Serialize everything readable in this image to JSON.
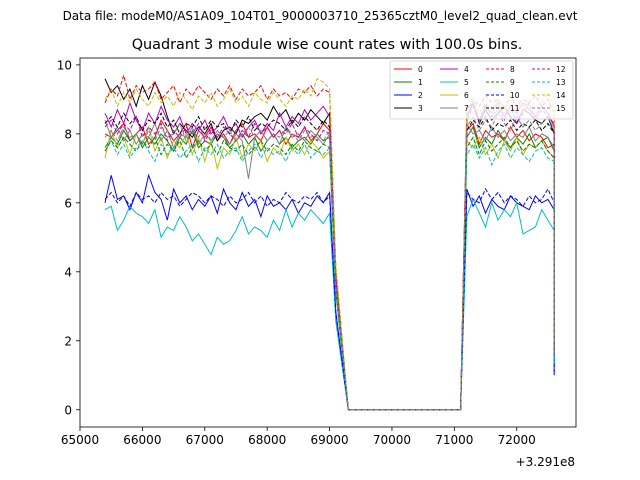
{
  "chart_data": {
    "type": "line",
    "suptitle": "Data file: modeM0/AS1A09_104T01_9000003710_25365cztM0_level2_quad_clean.evt",
    "title": "Quadrant 3 module wise count rates with 100.0s bins.",
    "xlabel": "",
    "ylabel": "",
    "x_offset_label": "+3.291e8",
    "xlim": [
      65000,
      72950
    ],
    "ylim": [
      -0.5,
      10.2
    ],
    "x_ticks": [
      65000,
      66000,
      67000,
      68000,
      69000,
      70000,
      71000,
      72000
    ],
    "y_ticks": [
      0,
      2,
      4,
      6,
      8,
      10
    ],
    "x_tick_labels": [
      "65000",
      "66000",
      "67000",
      "68000",
      "69000",
      "70000",
      "71000",
      "72000"
    ],
    "y_tick_labels": [
      "0",
      "2",
      "4",
      "6",
      "8",
      "10"
    ],
    "legend": {
      "placement": "top-right",
      "columns": 4
    },
    "x_segments": [
      {
        "start": 65400,
        "end": 69000,
        "step": 100
      },
      {
        "start": 69100,
        "end": 69300,
        "step": 100
      },
      {
        "start": 69300,
        "end": 71100,
        "step": 100
      },
      {
        "start": 71100,
        "end": 71200,
        "step": 100
      },
      {
        "start": 71200,
        "end": 72600,
        "step": 100
      }
    ],
    "series": [
      {
        "name": "0",
        "color": "#ff0000",
        "dash": false,
        "seg1": [
          8.0,
          7.9,
          8.1,
          8.3,
          7.8,
          8.0,
          8.2,
          7.7,
          7.9,
          8.4,
          8.1,
          7.8,
          8.0,
          8.3,
          7.6,
          8.1,
          7.9,
          8.2,
          7.8,
          8.0,
          7.7,
          8.1,
          8.3,
          7.9,
          8.0,
          7.8,
          8.2,
          7.9,
          8.1,
          7.7,
          8.0,
          7.9,
          8.2,
          7.8,
          8.0,
          8.3,
          8.1
        ],
        "seg2": [
          8.1,
          8.3,
          7.7,
          8.1,
          7.9,
          8.0,
          7.8,
          8.2,
          7.9,
          8.1,
          7.8,
          8.0,
          7.9,
          7.6,
          7.7
        ]
      },
      {
        "name": "1",
        "color": "#008000",
        "dash": false,
        "seg1": [
          7.6,
          7.9,
          7.7,
          8.1,
          7.8,
          8.0,
          7.6,
          7.9,
          7.7,
          8.0,
          7.8,
          7.5,
          7.9,
          7.7,
          8.1,
          7.6,
          7.8,
          7.7,
          8.0,
          7.9,
          7.6,
          7.8,
          8.0,
          7.7,
          7.9,
          7.5,
          7.8,
          8.0,
          7.7,
          7.9,
          7.6,
          7.8,
          7.9,
          7.7,
          8.0,
          7.8,
          7.9
        ],
        "seg2": [
          7.9,
          8.2,
          7.6,
          7.9,
          7.7,
          8.1,
          7.8,
          7.6,
          7.9,
          7.7,
          8.0,
          7.6,
          7.8,
          7.9,
          7.5
        ]
      },
      {
        "name": "2",
        "color": "#0000ff",
        "dash": false,
        "seg1": [
          6.0,
          6.8,
          6.1,
          6.2,
          5.8,
          6.3,
          6.0,
          6.8,
          6.3,
          6.1,
          5.5,
          6.4,
          6.0,
          6.2,
          5.8,
          6.1,
          5.9,
          6.2,
          5.7,
          6.4,
          6.0,
          5.8,
          6.3,
          5.9,
          6.1,
          5.6,
          6.2,
          5.9,
          6.0,
          5.8,
          6.1,
          5.7,
          6.0,
          5.9,
          6.2,
          6.0,
          6.3
        ],
        "seg2": [
          6.4,
          5.9,
          6.2,
          5.7,
          6.1,
          5.9,
          5.8,
          6.2,
          6.0,
          5.9,
          5.8,
          6.2,
          6.0,
          6.1,
          5.8
        ]
      },
      {
        "name": "3",
        "color": "#000000",
        "dash": false,
        "seg1": [
          9.6,
          9.2,
          9.4,
          9.0,
          9.3,
          8.8,
          9.4,
          9.0,
          9.5,
          9.1,
          8.5,
          8.0,
          8.3,
          8.1,
          7.9,
          8.2,
          8.0,
          8.3,
          7.8,
          8.1,
          8.2,
          8.0,
          8.4,
          8.3,
          8.5,
          8.6,
          8.4,
          8.8,
          8.5,
          8.7,
          8.3,
          8.6,
          8.4,
          8.7,
          8.5,
          8.3,
          8.6
        ],
        "seg2": [
          8.5,
          8.9,
          8.3,
          8.7,
          8.4,
          8.6,
          8.8,
          8.5,
          8.3,
          8.7,
          8.6,
          8.4,
          8.3,
          8.5,
          8.0
        ]
      },
      {
        "name": "4",
        "color": "#bf00bf",
        "dash": false,
        "seg1": [
          8.6,
          8.2,
          8.7,
          8.3,
          8.9,
          8.4,
          8.1,
          8.6,
          8.3,
          8.8,
          8.4,
          8.2,
          8.5,
          8.0,
          8.3,
          8.1,
          8.4,
          8.0,
          8.2,
          8.5,
          8.1,
          8.3,
          7.9,
          8.2,
          8.4,
          8.0,
          8.3,
          8.1,
          8.6,
          8.2,
          8.5,
          8.3,
          8.7,
          8.4,
          8.6,
          8.8,
          8.5
        ],
        "seg2": [
          8.7,
          8.9,
          8.4,
          8.8,
          8.6,
          8.9,
          8.5,
          8.8,
          8.6,
          8.9,
          8.7,
          8.5,
          8.8,
          8.6,
          8.2
        ]
      },
      {
        "name": "5",
        "color": "#00bfbf",
        "dash": false,
        "seg1": [
          5.8,
          5.9,
          5.2,
          5.5,
          5.9,
          5.7,
          5.6,
          5.4,
          5.8,
          5.0,
          5.3,
          5.2,
          5.6,
          5.3,
          4.9,
          5.1,
          4.8,
          4.5,
          5.0,
          4.8,
          4.9,
          5.2,
          5.6,
          5.1,
          5.3,
          5.2,
          5.0,
          5.5,
          5.2,
          5.8,
          5.3,
          5.7,
          5.5,
          5.8,
          5.6,
          5.4,
          5.7
        ],
        "seg2": [
          5.6,
          6.1,
          5.7,
          5.3,
          6.0,
          5.5,
          5.8,
          5.6,
          6.0,
          5.1,
          5.2,
          5.3,
          5.8,
          5.5,
          5.2
        ]
      },
      {
        "name": "6",
        "color": "#bfbf00",
        "dash": false,
        "seg1": [
          7.3,
          8.1,
          7.6,
          7.9,
          7.4,
          8.0,
          7.7,
          8.2,
          7.5,
          7.9,
          7.3,
          7.8,
          7.6,
          8.0,
          7.4,
          7.9,
          7.2,
          7.8,
          7.0,
          7.6,
          7.4,
          7.9,
          7.3,
          7.7,
          7.5,
          7.8,
          7.2,
          7.6,
          7.4,
          7.9,
          7.5,
          7.7,
          7.4,
          7.8,
          7.6,
          7.3,
          7.5
        ],
        "seg2": [
          7.8,
          7.6,
          7.9,
          7.4,
          7.7,
          7.3,
          7.8,
          7.5,
          7.9,
          7.4,
          7.7,
          7.6,
          7.8,
          7.5,
          7.3
        ]
      },
      {
        "name": "7",
        "color": "#808080",
        "dash": false,
        "seg1": [
          8.4,
          7.9,
          8.2,
          7.8,
          8.1,
          7.7,
          8.0,
          7.9,
          8.3,
          7.8,
          8.1,
          7.6,
          8.0,
          7.9,
          8.2,
          7.7,
          8.0,
          7.8,
          8.1,
          7.9,
          7.7,
          8.0,
          7.8,
          6.7,
          7.9,
          8.1,
          7.8,
          8.0,
          7.7,
          8.2,
          7.9,
          8.0,
          7.8,
          8.1,
          7.9,
          7.7,
          8.0
        ],
        "seg2": [
          8.3,
          8.0,
          8.1,
          7.8,
          8.2,
          7.9,
          8.1,
          7.8,
          8.0,
          7.9,
          8.2,
          7.8,
          8.0,
          7.9,
          7.6
        ]
      },
      {
        "name": "8",
        "color": "#ff0000",
        "dash": true,
        "seg1": [
          8.9,
          9.3,
          9.1,
          9.7,
          9.0,
          9.4,
          9.2,
          9.3,
          9.5,
          9.0,
          9.2,
          9.4,
          8.9,
          9.3,
          9.1,
          9.4,
          9.2,
          9.0,
          9.3,
          9.1,
          9.4,
          9.0,
          9.3,
          9.1,
          9.2,
          9.4,
          9.0,
          9.3,
          9.1,
          9.2,
          9.0,
          9.3,
          9.2,
          9.4,
          9.1,
          9.3,
          9.2
        ],
        "seg2": [
          8.7,
          9.0,
          8.8,
          9.1,
          8.9,
          9.0,
          8.7,
          9.1,
          8.8,
          9.0,
          8.9,
          9.1,
          8.8,
          9.0,
          8.6
        ]
      },
      {
        "name": "9",
        "color": "#008000",
        "dash": true,
        "seg1": [
          7.5,
          7.8,
          7.6,
          7.9,
          7.7,
          7.5,
          7.8,
          7.6,
          7.9,
          7.4,
          7.7,
          7.5,
          7.8,
          7.3,
          7.6,
          7.8,
          7.5,
          7.7,
          7.4,
          7.8,
          7.6,
          7.5,
          7.7,
          7.4,
          7.6,
          7.8,
          7.5,
          7.7,
          7.6,
          7.4,
          7.7,
          7.5,
          7.8,
          7.6,
          7.5,
          7.7,
          7.6
        ],
        "seg2": [
          7.6,
          7.9,
          7.4,
          7.8,
          7.5,
          7.7,
          7.9,
          7.6,
          7.8,
          7.5,
          7.7,
          7.6,
          7.8,
          7.5,
          7.3
        ]
      },
      {
        "name": "10",
        "color": "#0000ff",
        "dash": true,
        "seg1": [
          6.1,
          6.3,
          6.0,
          6.2,
          5.9,
          6.3,
          6.1,
          6.2,
          6.0,
          6.3,
          6.1,
          6.2,
          5.9,
          6.1,
          6.3,
          6.2,
          6.0,
          6.2,
          6.1,
          5.9,
          6.2,
          6.0,
          6.1,
          6.3,
          6.0,
          6.2,
          5.9,
          6.1,
          6.0,
          6.3,
          6.1,
          6.0,
          6.2,
          6.1,
          6.3,
          6.0,
          6.2
        ],
        "seg2": [
          6.3,
          6.1,
          6.0,
          6.4,
          6.1,
          6.3,
          6.0,
          6.2,
          6.1,
          5.9,
          6.2,
          6.0,
          6.1,
          6.4,
          6.0
        ]
      },
      {
        "name": "11",
        "color": "#000000",
        "dash": true,
        "seg1": [
          8.3,
          8.5,
          8.2,
          8.6,
          8.3,
          8.5,
          8.1,
          8.4,
          8.3,
          8.6,
          8.2,
          8.4,
          8.0,
          8.3,
          8.2,
          8.5,
          8.1,
          8.4,
          8.2,
          8.3,
          8.0,
          8.4,
          8.2,
          8.5,
          8.1,
          8.3,
          8.2,
          8.4,
          8.3,
          8.1,
          8.4,
          8.2,
          8.5,
          8.3,
          8.1,
          8.4,
          8.2
        ],
        "seg2": [
          8.1,
          8.4,
          8.2,
          8.5,
          8.1,
          8.3,
          8.2,
          8.4,
          8.1,
          8.3,
          8.2,
          8.4,
          8.1,
          8.3,
          8.0
        ]
      },
      {
        "name": "12",
        "color": "#bf00bf",
        "dash": true,
        "seg1": [
          8.2,
          8.4,
          8.0,
          8.3,
          8.1,
          8.5,
          7.9,
          8.2,
          8.0,
          8.3,
          7.8,
          8.1,
          7.9,
          8.2,
          8.0,
          8.3,
          7.8,
          8.1,
          7.9,
          8.2,
          8.0,
          7.8,
          8.1,
          7.9,
          8.3,
          8.0,
          8.2,
          7.9,
          8.1,
          8.0,
          8.3,
          7.9,
          8.2,
          8.0,
          7.8,
          8.1,
          8.0
        ],
        "seg2": [
          8.4,
          8.8,
          8.3,
          8.9,
          8.5,
          8.7,
          8.4,
          8.8,
          8.3,
          8.6,
          8.9,
          8.4,
          8.7,
          8.5,
          8.3
        ]
      },
      {
        "name": "13",
        "color": "#00bfbf",
        "dash": true,
        "seg1": [
          7.6,
          7.8,
          7.4,
          7.7,
          7.3,
          7.6,
          7.8,
          7.5,
          7.2,
          7.7,
          7.4,
          7.6,
          7.3,
          7.5,
          7.7,
          7.2,
          7.6,
          7.4,
          7.7,
          7.3,
          7.5,
          7.6,
          7.2,
          7.5,
          7.7,
          7.3,
          7.6,
          7.4,
          7.5,
          7.2,
          7.6,
          7.4,
          7.7,
          7.3,
          7.5,
          7.4,
          7.6
        ],
        "seg2": [
          7.4,
          7.7,
          7.3,
          7.6,
          7.1,
          7.5,
          7.7,
          7.3,
          7.6,
          7.4,
          7.2,
          7.5,
          7.6,
          7.3,
          7.2
        ]
      },
      {
        "name": "14",
        "color": "#bfbf00",
        "dash": true,
        "seg1": [
          9.0,
          9.3,
          8.8,
          9.2,
          8.9,
          9.3,
          9.0,
          8.8,
          9.2,
          8.9,
          9.1,
          8.8,
          9.2,
          9.0,
          8.7,
          9.1,
          8.9,
          9.2,
          8.8,
          9.0,
          9.3,
          8.9,
          9.1,
          8.8,
          9.2,
          9.0,
          8.9,
          9.2,
          9.0,
          8.8,
          9.1,
          9.0,
          9.3,
          9.1,
          9.6,
          9.5,
          9.3
        ],
        "seg2": [
          8.7,
          9.0,
          8.6,
          8.9,
          8.7,
          9.0,
          8.8,
          8.6,
          8.9,
          8.7,
          9.0,
          8.8,
          8.9,
          9.2,
          8.7
        ]
      },
      {
        "name": "15",
        "color": "#808080",
        "dash": true,
        "seg1": [
          7.9,
          8.1,
          7.8,
          8.2,
          7.9,
          8.0,
          7.7,
          8.1,
          7.8,
          8.2,
          7.9,
          8.0,
          8.3,
          7.8,
          8.1,
          7.9,
          8.2,
          7.8,
          8.0,
          7.9,
          8.1,
          7.8,
          8.0,
          8.2,
          7.9,
          8.1,
          7.8,
          8.0,
          7.9,
          8.2,
          8.0,
          7.8,
          8.1,
          7.9,
          8.0,
          7.8,
          8.1
        ],
        "seg2": [
          8.2,
          8.5,
          8.1,
          8.4,
          8.2,
          8.6,
          8.3,
          8.1,
          8.5,
          8.2,
          8.4,
          8.1,
          8.3,
          8.5,
          8.1
        ]
      }
    ],
    "transition": {
      "drop_start": 69000,
      "drop_end": 69300,
      "zero_start": 69300,
      "zero_end": 71100,
      "rise_end": 71200,
      "last_x": 72600,
      "last_values": [
        1.5,
        1.6,
        1.0,
        1.9,
        1.8,
        1.2,
        1.7,
        1.6,
        1.9,
        1.6,
        1.1,
        1.8,
        1.7,
        1.4,
        1.9,
        1.6
      ]
    }
  }
}
